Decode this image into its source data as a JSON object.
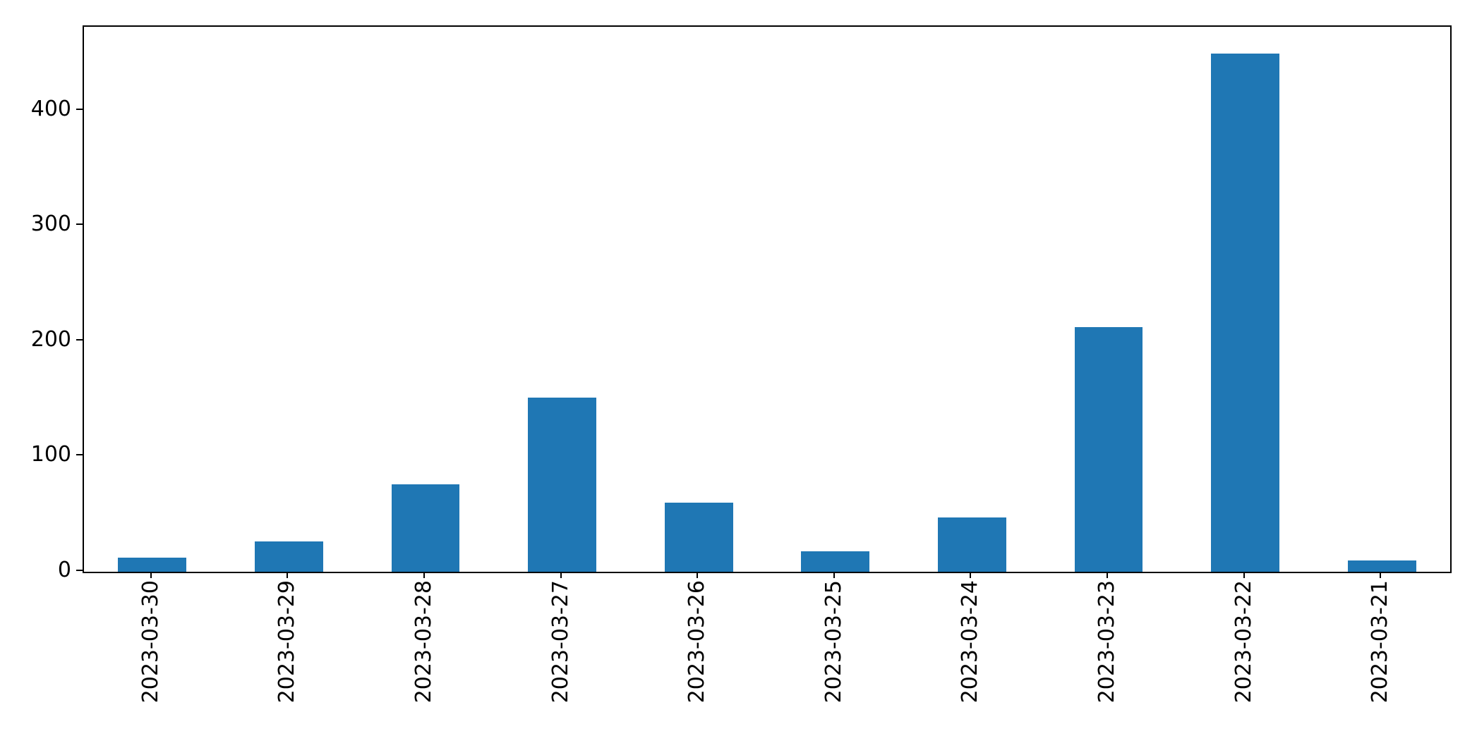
{
  "chart_data": {
    "type": "bar",
    "title": "",
    "xlabel": "",
    "ylabel": "",
    "categories": [
      "2023-03-30",
      "2023-03-29",
      "2023-03-28",
      "2023-03-27",
      "2023-03-26",
      "2023-03-25",
      "2023-03-24",
      "2023-03-23",
      "2023-03-22",
      "2023-03-21"
    ],
    "values": [
      12,
      26,
      76,
      151,
      60,
      18,
      47,
      212,
      449,
      10
    ],
    "yticks": [
      0,
      100,
      200,
      300,
      400
    ],
    "ylim": [
      0,
      472.5
    ],
    "bar_width_fraction": 0.5,
    "xtick_rotation_degrees": 90,
    "grid": false,
    "legend": null,
    "colors": {
      "bar": "#1f77b4",
      "spine": "#000000",
      "text": "#000000",
      "background": "#ffffff"
    }
  }
}
